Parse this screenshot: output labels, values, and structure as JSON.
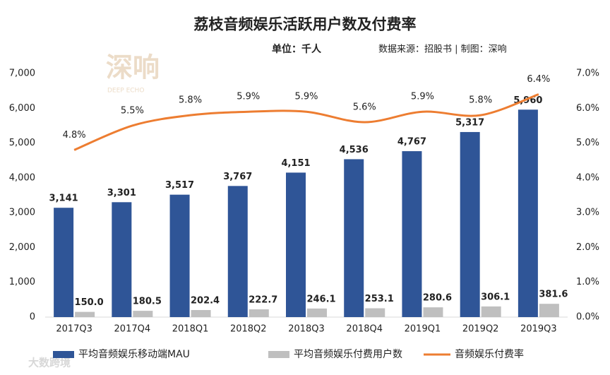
{
  "chart_data": {
    "type": "bar_line",
    "title": "荔枝音频娱乐活跃用户数及付费率",
    "subtitle": "单位：千人",
    "source": "数据来源：招股书 | 制图：深响",
    "watermark": "深响",
    "watermark_sub": "DEEP ECHO",
    "corner_logo": "大数跨境",
    "categories": [
      "2017Q3",
      "2017Q4",
      "2018Q1",
      "2018Q2",
      "2018Q3",
      "2018Q4",
      "2019Q1",
      "2019Q2",
      "2019Q3"
    ],
    "series": [
      {
        "name": "平均音频娱乐移动端MAU",
        "type": "bar",
        "color": "#2f5597",
        "values": [
          3141,
          3301,
          3517,
          3767,
          4151,
          4536,
          4767,
          5317,
          5960
        ],
        "value_labels": [
          "3,141",
          "3,301",
          "3,517",
          "3,767",
          "4,151",
          "4,536",
          "4,767",
          "5,317",
          "5,960"
        ]
      },
      {
        "name": "平均音频娱乐付费用户数",
        "type": "bar",
        "color": "#bfbfbf",
        "values": [
          150.0,
          180.5,
          202.4,
          222.7,
          246.1,
          253.1,
          280.6,
          306.1,
          381.6
        ],
        "value_labels": [
          "150.0",
          "180.5",
          "202.4",
          "222.7",
          "246.1",
          "253.1",
          "280.6",
          "306.1",
          "381.6"
        ]
      },
      {
        "name": "音频娱乐付费率",
        "type": "line",
        "axis": "y2",
        "color": "#ed7d31",
        "values": [
          4.8,
          5.5,
          5.8,
          5.9,
          5.9,
          5.6,
          5.9,
          5.8,
          6.4
        ],
        "value_labels": [
          "4.8%",
          "5.5%",
          "5.8%",
          "5.9%",
          "5.9%",
          "5.6%",
          "5.9%",
          "5.8%",
          "6.4%"
        ]
      }
    ],
    "ylim": [
      0,
      7000
    ],
    "yticks": [
      0,
      {
        "value": 1000,
        "label": "1,000"
      },
      {
        "value": 2000,
        "label": "2,000"
      },
      {
        "value": 3000,
        "label": "3,000"
      },
      {
        "value": 4000,
        "label": "4,000"
      },
      {
        "value": 5000,
        "label": "5,000"
      },
      {
        "value": 6000,
        "label": "6,000"
      },
      {
        "value": 7000,
        "label": "7,000"
      }
    ],
    "y2lim": [
      0,
      7
    ],
    "y2ticks": [
      {
        "value": 0,
        "label": "0.0%"
      },
      {
        "value": 1,
        "label": "1.0%"
      },
      {
        "value": 2,
        "label": "2.0%"
      },
      {
        "value": 3,
        "label": "3.0%"
      },
      {
        "value": 4,
        "label": "4.0%"
      },
      {
        "value": 5,
        "label": "5.0%"
      },
      {
        "value": 6,
        "label": "6.0%"
      },
      {
        "value": 7,
        "label": "7.0%"
      }
    ],
    "grid": false,
    "legend": "bottom"
  }
}
